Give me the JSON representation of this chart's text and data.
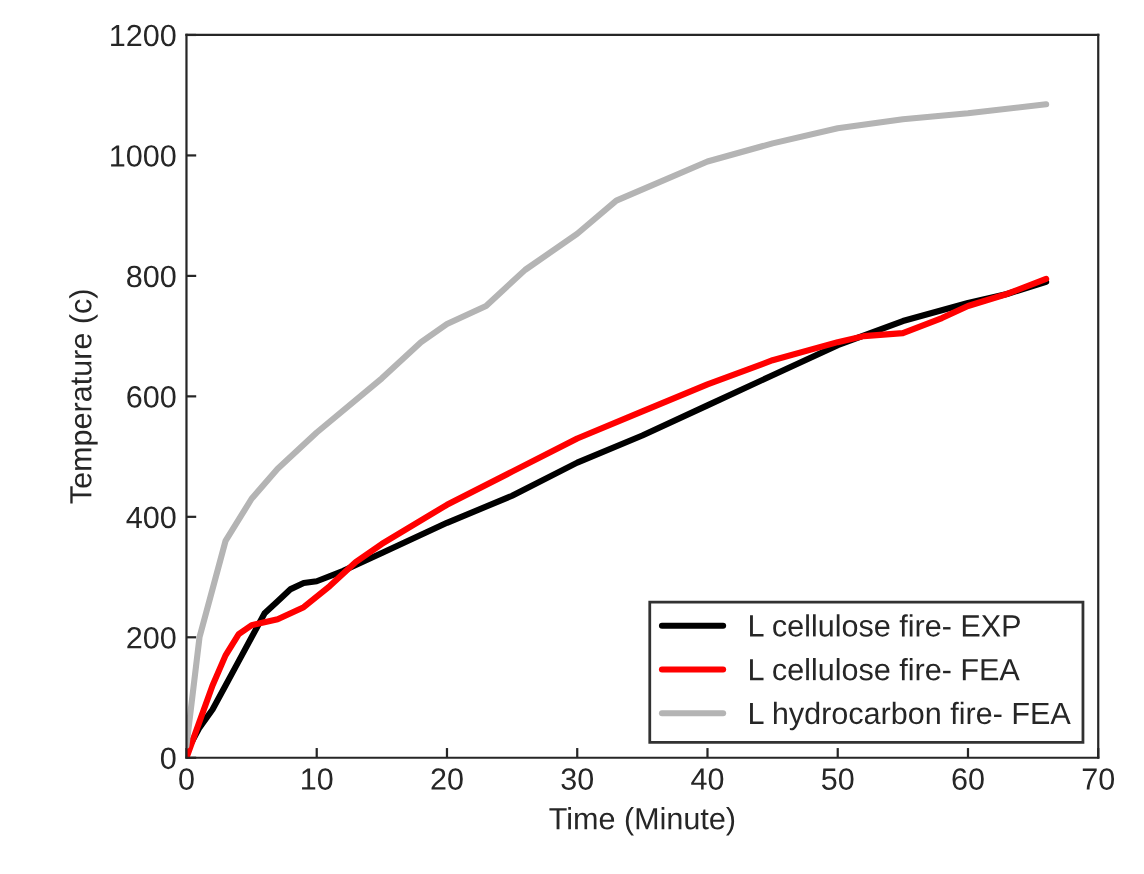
{
  "chart_data": {
    "type": "line",
    "xlabel": "Time (Minute)",
    "ylabel": "Temperature (c)",
    "xlim": [
      0,
      70
    ],
    "ylim": [
      0,
      1200
    ],
    "xticks": [
      0,
      10,
      20,
      30,
      40,
      50,
      60,
      70
    ],
    "yticks": [
      0,
      200,
      400,
      600,
      800,
      1000,
      1200
    ],
    "grid": false,
    "legend": "bottom right",
    "series": [
      {
        "name": "L cellulose fire- EXP",
        "color": "#000000",
        "x": [
          0,
          1,
          2,
          3,
          4,
          5,
          6,
          7,
          8,
          9,
          10,
          12,
          15,
          20,
          25,
          30,
          35,
          40,
          45,
          50,
          55,
          60,
          63,
          66
        ],
        "values": [
          10,
          50,
          80,
          120,
          160,
          200,
          240,
          260,
          280,
          290,
          293,
          310,
          340,
          390,
          435,
          490,
          535,
          585,
          635,
          685,
          725,
          755,
          770,
          790
        ]
      },
      {
        "name": "L cellulose fire- FEA",
        "color": "#ff0000",
        "x": [
          0,
          1,
          2,
          3,
          4,
          5,
          7,
          9,
          11,
          13,
          15,
          20,
          25,
          30,
          35,
          40,
          45,
          50,
          52,
          55,
          58,
          60,
          63,
          66
        ],
        "values": [
          0,
          60,
          120,
          170,
          205,
          220,
          230,
          250,
          285,
          325,
          355,
          420,
          475,
          530,
          575,
          620,
          660,
          690,
          700,
          705,
          730,
          750,
          770,
          795
        ]
      },
      {
        "name": "L hydrocarbon fire- FEA",
        "color": "#b4b4b4",
        "x": [
          0,
          1,
          2,
          3,
          5,
          7,
          10,
          15,
          18,
          20,
          23,
          26,
          30,
          33,
          40,
          45,
          50,
          55,
          60,
          66
        ],
        "values": [
          20,
          200,
          280,
          360,
          430,
          480,
          540,
          630,
          690,
          720,
          750,
          810,
          870,
          925,
          990,
          1020,
          1045,
          1060,
          1070,
          1085
        ]
      }
    ]
  }
}
